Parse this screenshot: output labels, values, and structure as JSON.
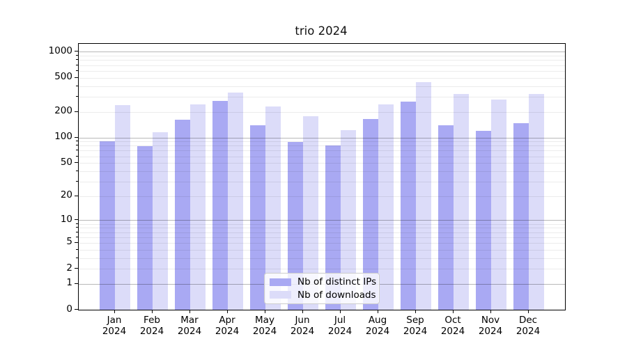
{
  "title": "trio 2024",
  "colors": {
    "ips_bar": "#a9a9f3",
    "downloads_bar": "#dcdcf9",
    "grid_major": "#b8b8b8",
    "grid_minor": "#ececec",
    "axis": "#000000",
    "legend_border": "#cccccc"
  },
  "chart_data": {
    "type": "bar",
    "title": "trio 2024",
    "categories": [
      "Jan",
      "Feb",
      "Mar",
      "Apr",
      "May",
      "Jun",
      "Jul",
      "Aug",
      "Sep",
      "Oct",
      "Nov",
      "Dec"
    ],
    "category_year": "2024",
    "series": [
      {
        "name": "Nb of distinct IPs",
        "color": "#a9a9f3",
        "values": [
          90,
          79,
          161,
          269,
          140,
          89,
          81,
          165,
          261,
          140,
          120,
          148
        ]
      },
      {
        "name": "Nb of downloads",
        "color": "#dcdcf9",
        "values": [
          240,
          115,
          243,
          336,
          230,
          176,
          121,
          245,
          441,
          324,
          276,
          322
        ]
      }
    ],
    "xlabel": "",
    "ylabel": "",
    "yscale": "log1p",
    "yticks": [
      0,
      1,
      2,
      5,
      10,
      20,
      50,
      100,
      200,
      500,
      1000
    ],
    "ylim": [
      0,
      1240
    ],
    "grid": "on",
    "legend_position": "lower center inside"
  }
}
